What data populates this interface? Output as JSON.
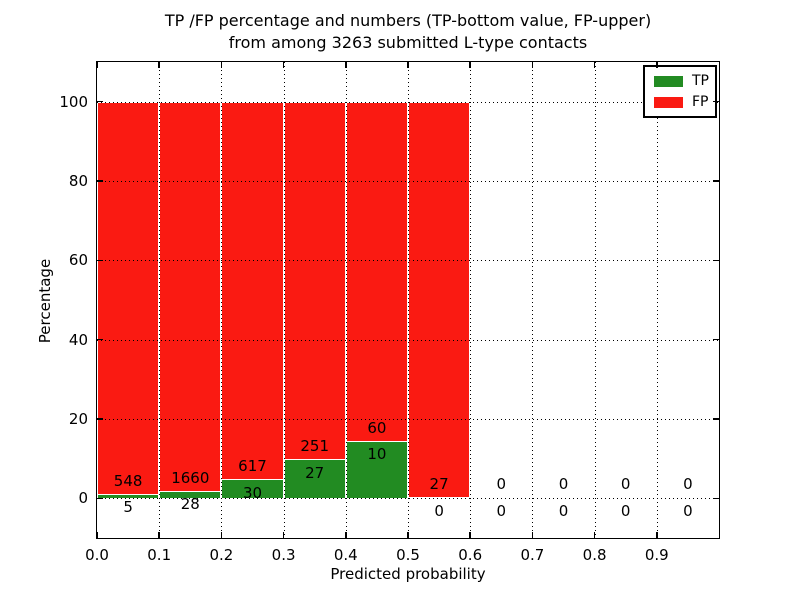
{
  "figure": {
    "title_line1": "TP /FP percentage and numbers (TP-bottom value, FP-upper)",
    "title_line2": "from among 3263 submitted L-type contacts"
  },
  "chart_data": {
    "type": "bar",
    "stacked": true,
    "title": "TP /FP percentage and numbers (TP-bottom value, FP-upper) from among 3263 submitted L-type contacts",
    "xlabel": "Predicted probability",
    "ylabel": "Percentage",
    "xlim": [
      0.0,
      1.0
    ],
    "ylim": [
      -10,
      110
    ],
    "x_ticks": [
      0.0,
      0.1,
      0.2,
      0.3,
      0.4,
      0.5,
      0.6,
      0.7,
      0.8,
      0.9
    ],
    "x_tick_labels": [
      "0.0",
      "0.1",
      "0.2",
      "0.3",
      "0.4",
      "0.5",
      "0.6",
      "0.7",
      "0.8",
      "0.9"
    ],
    "y_ticks": [
      0,
      20,
      40,
      60,
      80,
      100
    ],
    "y_tick_labels": [
      "0",
      "20",
      "40",
      "60",
      "80",
      "100"
    ],
    "grid": "dotted",
    "total_contacts": 3263,
    "bin_width": 0.1,
    "bins_x_start": [
      0.0,
      0.1,
      0.2,
      0.3,
      0.4,
      0.5,
      0.6,
      0.7,
      0.8,
      0.9
    ],
    "series": [
      {
        "name": "TP",
        "color": "#228b22",
        "counts": [
          5,
          28,
          30,
          27,
          10,
          0,
          0,
          0,
          0,
          0
        ]
      },
      {
        "name": "FP",
        "color": "#fa1a12",
        "counts": [
          548,
          1660,
          617,
          251,
          60,
          27,
          0,
          0,
          0,
          0
        ]
      }
    ],
    "tp_percent_approx": [
      0.9,
      1.66,
      4.64,
      9.71,
      14.29,
      0.0,
      0,
      0,
      0,
      0
    ],
    "annotation_rule": "lower number = TP count, upper number = FP count",
    "legend": {
      "position": "upper right",
      "entries": [
        {
          "label": "TP",
          "color": "#228b22"
        },
        {
          "label": "FP",
          "color": "#fa1a12"
        }
      ]
    }
  }
}
